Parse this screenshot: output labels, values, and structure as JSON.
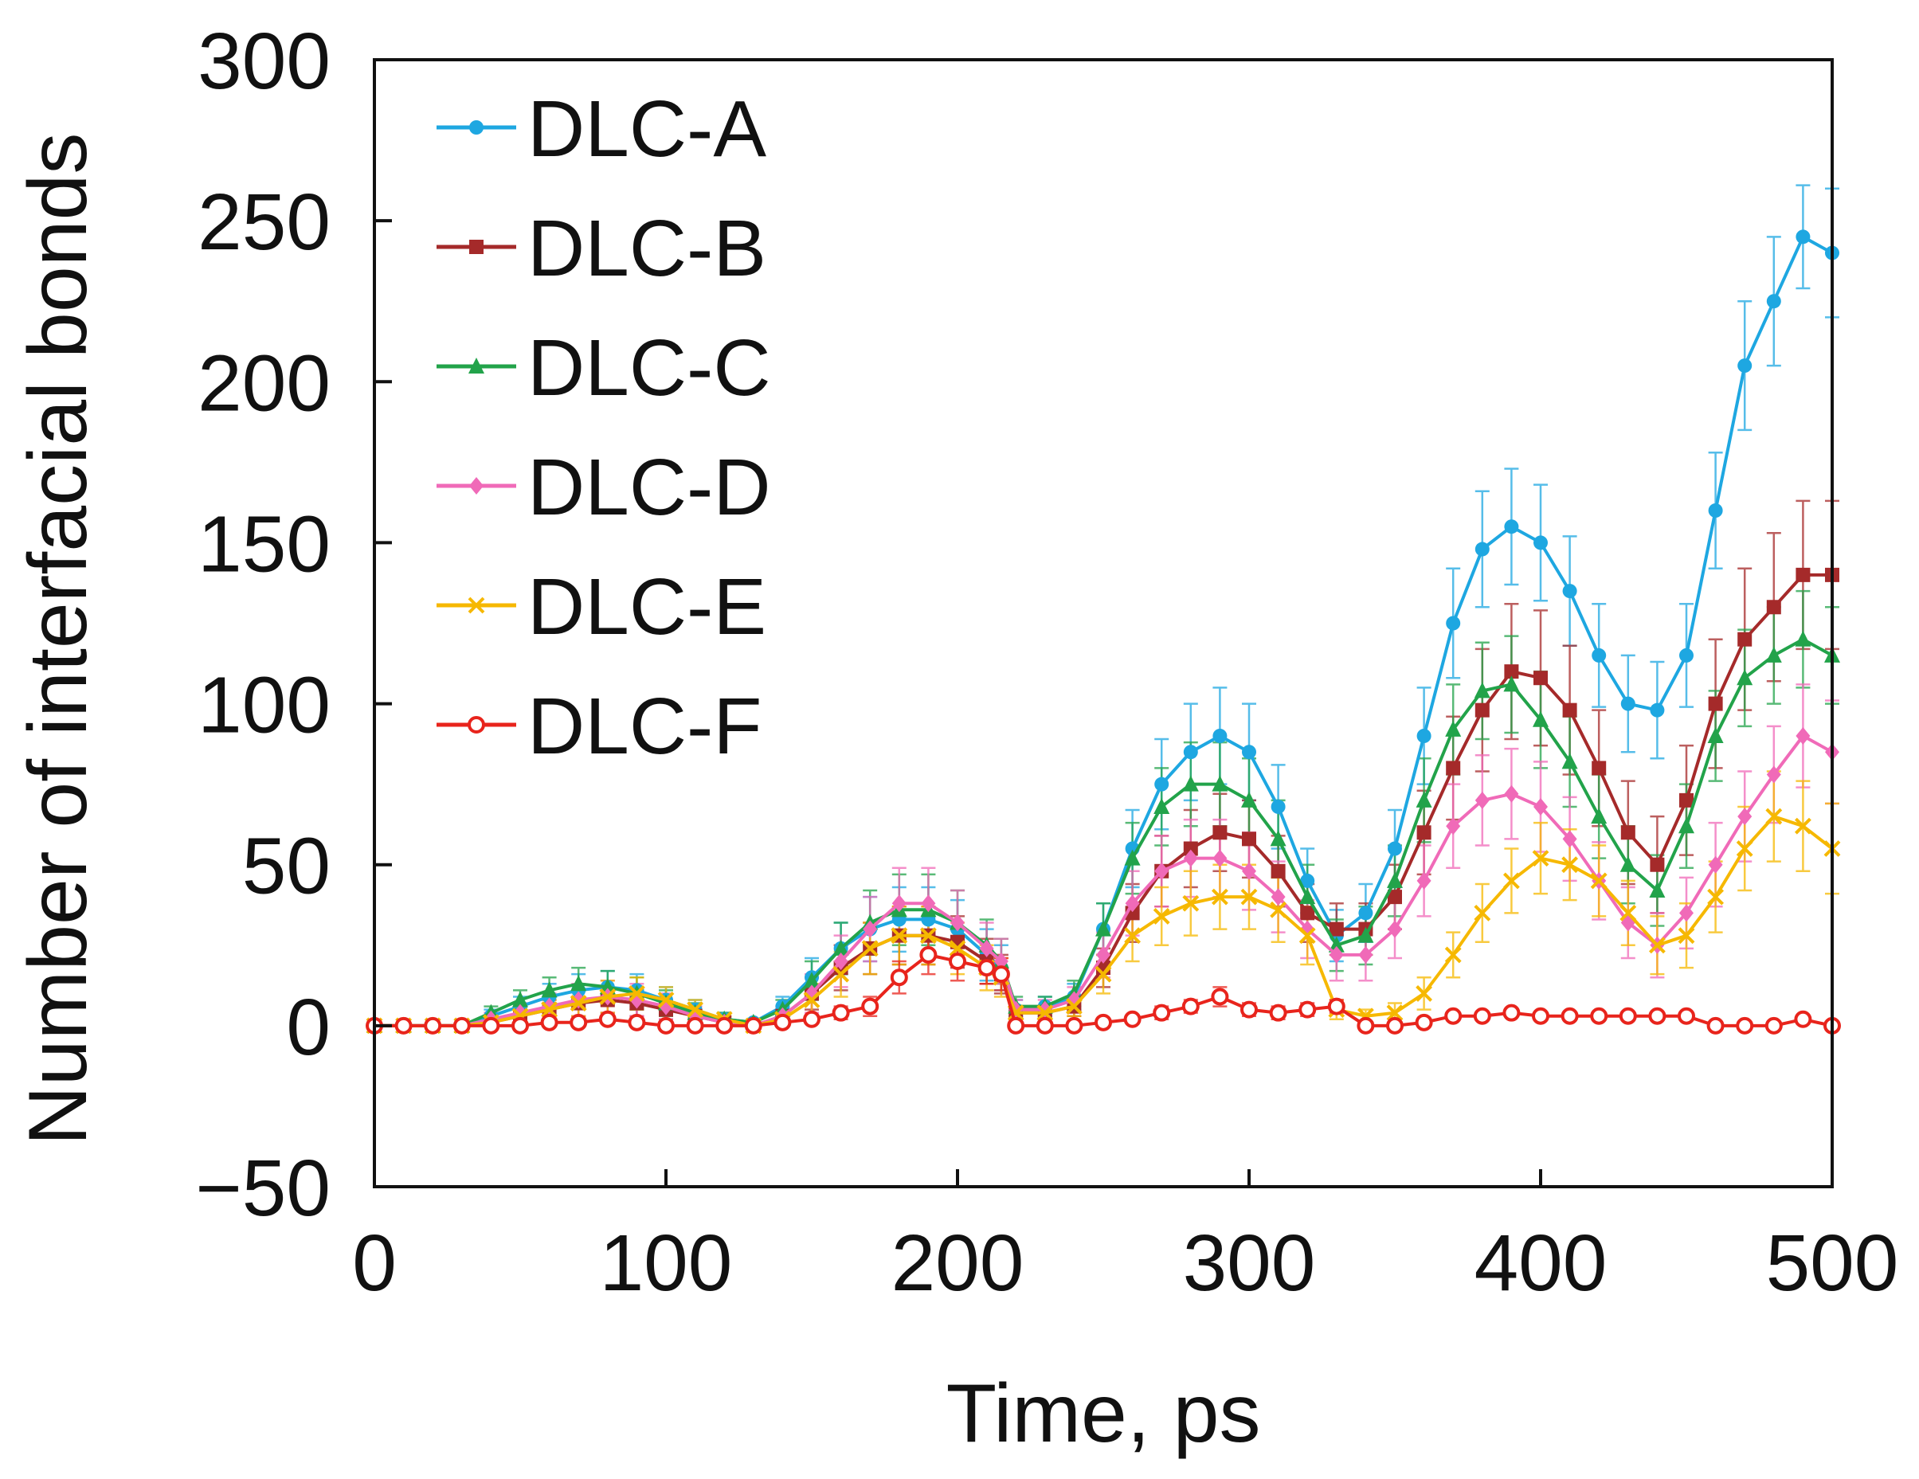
{
  "chart_data": {
    "type": "line",
    "title": "",
    "xlabel": "Time, ps",
    "ylabel": "Number of interfacial bonds",
    "xlim": [
      0,
      500
    ],
    "ylim": [
      -50,
      300
    ],
    "xticks": [
      0,
      100,
      200,
      300,
      400,
      500
    ],
    "yticks": [
      -50,
      0,
      50,
      100,
      150,
      200,
      250,
      300
    ],
    "xtick_labels": [
      "0",
      "100",
      "200",
      "300",
      "400",
      "500"
    ],
    "ytick_labels": [
      "−50",
      "0",
      "50",
      "100",
      "150",
      "200",
      "250",
      "300"
    ],
    "grid": false,
    "legend_position": "top-left",
    "x": [
      0,
      10,
      20,
      30,
      40,
      50,
      60,
      70,
      80,
      90,
      100,
      110,
      120,
      130,
      140,
      150,
      160,
      170,
      180,
      190,
      200,
      210,
      215,
      220,
      230,
      240,
      250,
      260,
      270,
      280,
      290,
      300,
      310,
      320,
      330,
      340,
      350,
      360,
      370,
      380,
      390,
      400,
      410,
      420,
      430,
      440,
      450,
      460,
      470,
      480,
      490,
      500
    ],
    "series": [
      {
        "name": "DLC-A",
        "color": "#1ea7e1",
        "marker": "filled-circle",
        "values": [
          0,
          0,
          0,
          0,
          3,
          6,
          9,
          11,
          12,
          11,
          8,
          5,
          2,
          1,
          6,
          15,
          24,
          30,
          33,
          33,
          30,
          22,
          18,
          5,
          6,
          9,
          30,
          55,
          75,
          85,
          90,
          85,
          68,
          45,
          28,
          35,
          55,
          90,
          125,
          148,
          155,
          150,
          135,
          115,
          100,
          98,
          115,
          160,
          205,
          225,
          245,
          240
        ],
        "errors": [
          0,
          0,
          0,
          0,
          2,
          3,
          4,
          5,
          5,
          5,
          4,
          3,
          2,
          1,
          3,
          6,
          8,
          10,
          10,
          10,
          9,
          8,
          7,
          3,
          3,
          4,
          8,
          12,
          14,
          15,
          15,
          15,
          13,
          10,
          8,
          9,
          12,
          15,
          17,
          18,
          18,
          18,
          17,
          16,
          15,
          15,
          16,
          18,
          20,
          20,
          16,
          20
        ]
      },
      {
        "name": "DLC-B",
        "color": "#a52a2a",
        "marker": "filled-square",
        "values": [
          0,
          0,
          0,
          0,
          1,
          3,
          5,
          7,
          8,
          7,
          5,
          3,
          1,
          0,
          3,
          10,
          18,
          24,
          28,
          28,
          26,
          20,
          16,
          4,
          4,
          6,
          18,
          35,
          48,
          55,
          60,
          58,
          48,
          35,
          30,
          30,
          40,
          60,
          80,
          98,
          110,
          108,
          98,
          80,
          60,
          50,
          70,
          100,
          120,
          130,
          140,
          140
        ],
        "errors": [
          0,
          0,
          0,
          0,
          1,
          2,
          3,
          4,
          4,
          4,
          3,
          2,
          1,
          0,
          2,
          5,
          7,
          8,
          9,
          9,
          8,
          7,
          6,
          2,
          2,
          3,
          6,
          9,
          11,
          12,
          12,
          12,
          11,
          9,
          8,
          8,
          10,
          13,
          16,
          19,
          21,
          21,
          20,
          18,
          16,
          15,
          17,
          20,
          22,
          23,
          23,
          23
        ]
      },
      {
        "name": "DLC-C",
        "color": "#22a34a",
        "marker": "filled-triangle",
        "values": [
          0,
          0,
          0,
          0,
          4,
          8,
          11,
          13,
          12,
          10,
          7,
          4,
          2,
          1,
          5,
          14,
          24,
          32,
          36,
          36,
          32,
          25,
          20,
          6,
          6,
          10,
          30,
          52,
          68,
          75,
          75,
          70,
          58,
          40,
          25,
          28,
          45,
          70,
          92,
          104,
          106,
          95,
          82,
          65,
          50,
          42,
          62,
          90,
          108,
          115,
          120,
          115
        ],
        "errors": [
          0,
          0,
          0,
          0,
          2,
          3,
          4,
          5,
          5,
          5,
          4,
          3,
          2,
          1,
          3,
          6,
          8,
          10,
          11,
          11,
          10,
          8,
          7,
          3,
          3,
          4,
          8,
          11,
          12,
          13,
          13,
          13,
          12,
          10,
          8,
          9,
          11,
          13,
          14,
          15,
          15,
          15,
          14,
          13,
          12,
          11,
          13,
          14,
          15,
          15,
          15,
          15
        ]
      },
      {
        "name": "DLC-D",
        "color": "#f06ab8",
        "marker": "filled-diamond",
        "values": [
          0,
          0,
          0,
          0,
          2,
          4,
          6,
          8,
          9,
          8,
          6,
          3,
          1,
          0,
          3,
          10,
          20,
          30,
          38,
          38,
          32,
          24,
          20,
          5,
          5,
          8,
          22,
          38,
          48,
          52,
          52,
          48,
          40,
          30,
          22,
          22,
          30,
          45,
          62,
          70,
          72,
          68,
          58,
          45,
          32,
          25,
          35,
          50,
          65,
          78,
          90,
          85
        ],
        "errors": [
          0,
          0,
          0,
          0,
          2,
          3,
          4,
          5,
          5,
          5,
          4,
          3,
          1,
          0,
          3,
          6,
          8,
          10,
          11,
          11,
          10,
          8,
          7,
          3,
          3,
          4,
          7,
          10,
          11,
          12,
          12,
          12,
          11,
          9,
          8,
          8,
          9,
          11,
          13,
          14,
          14,
          14,
          13,
          12,
          11,
          10,
          11,
          13,
          14,
          15,
          16,
          16
        ]
      },
      {
        "name": "DLC-E",
        "color": "#f6b800",
        "marker": "x",
        "values": [
          0,
          0,
          0,
          0,
          1,
          3,
          5,
          7,
          9,
          10,
          8,
          5,
          2,
          0,
          2,
          8,
          16,
          24,
          28,
          28,
          24,
          18,
          15,
          4,
          4,
          6,
          16,
          28,
          34,
          38,
          40,
          40,
          36,
          28,
          5,
          3,
          4,
          10,
          22,
          35,
          45,
          52,
          50,
          45,
          35,
          25,
          28,
          40,
          55,
          65,
          62,
          55
        ],
        "errors": [
          0,
          0,
          0,
          0,
          1,
          2,
          3,
          4,
          5,
          5,
          4,
          3,
          1,
          0,
          2,
          5,
          7,
          8,
          9,
          9,
          8,
          7,
          6,
          2,
          2,
          3,
          6,
          8,
          9,
          10,
          10,
          10,
          10,
          9,
          3,
          2,
          3,
          5,
          7,
          9,
          10,
          11,
          11,
          11,
          10,
          9,
          10,
          11,
          13,
          14,
          14,
          14
        ]
      },
      {
        "name": "DLC-F",
        "color": "#e8241c",
        "marker": "open-circle",
        "values": [
          0,
          0,
          0,
          0,
          0,
          0,
          1,
          1,
          2,
          1,
          0,
          0,
          0,
          0,
          1,
          2,
          4,
          6,
          15,
          22,
          20,
          18,
          16,
          0,
          0,
          0,
          1,
          2,
          4,
          6,
          9,
          5,
          4,
          5,
          6,
          0,
          0,
          1,
          3,
          3,
          4,
          3,
          3,
          3,
          3,
          3,
          3,
          0,
          0,
          0,
          2,
          0
        ],
        "errors": [
          0,
          0,
          0,
          0,
          0,
          0,
          1,
          1,
          1,
          1,
          0,
          0,
          0,
          0,
          1,
          1,
          2,
          3,
          5,
          6,
          6,
          5,
          5,
          0,
          0,
          0,
          1,
          1,
          2,
          2,
          3,
          2,
          2,
          2,
          2,
          0,
          0,
          1,
          1,
          1,
          1,
          1,
          1,
          1,
          1,
          1,
          1,
          0,
          0,
          0,
          1,
          0
        ]
      }
    ]
  }
}
